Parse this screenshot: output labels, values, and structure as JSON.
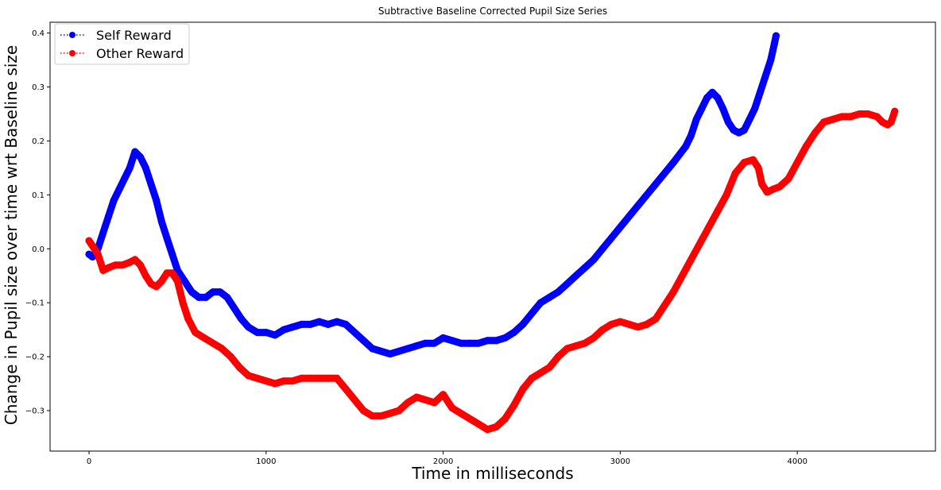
{
  "chart_data": {
    "type": "line",
    "title": "Subtractive Baseline Corrected Pupil Size Series",
    "xlabel": "Time in milliseconds",
    "ylabel": "Change in Pupil size over time wrt Baseline size",
    "xlim": [
      -220,
      4780
    ],
    "ylim": [
      -0.375,
      0.42
    ],
    "xticks": [
      0,
      1000,
      2000,
      3000,
      4000
    ],
    "yticks": [
      -0.3,
      -0.2,
      -0.1,
      0.0,
      0.1,
      0.2,
      0.3,
      0.4
    ],
    "xtick_labels": [
      "0",
      "1000",
      "2000",
      "3000",
      "4000"
    ],
    "ytick_labels": [
      "−0.3",
      "−0.2",
      "−0.1",
      "0.0",
      "0.1",
      "0.2",
      "0.3",
      "0.4"
    ],
    "grid": false,
    "legend_position": "top-left",
    "series": [
      {
        "name": "Self Reward",
        "color": "#0000ff",
        "points": [
          [
            0,
            -0.01
          ],
          [
            20,
            -0.015
          ],
          [
            50,
            0.0
          ],
          [
            80,
            0.03
          ],
          [
            110,
            0.06
          ],
          [
            140,
            0.09
          ],
          [
            170,
            0.11
          ],
          [
            200,
            0.13
          ],
          [
            230,
            0.15
          ],
          [
            260,
            0.18
          ],
          [
            290,
            0.17
          ],
          [
            320,
            0.15
          ],
          [
            350,
            0.12
          ],
          [
            380,
            0.09
          ],
          [
            410,
            0.05
          ],
          [
            440,
            0.02
          ],
          [
            470,
            -0.01
          ],
          [
            500,
            -0.04
          ],
          [
            540,
            -0.06
          ],
          [
            580,
            -0.08
          ],
          [
            620,
            -0.09
          ],
          [
            660,
            -0.09
          ],
          [
            700,
            -0.08
          ],
          [
            740,
            -0.08
          ],
          [
            780,
            -0.09
          ],
          [
            820,
            -0.11
          ],
          [
            860,
            -0.13
          ],
          [
            900,
            -0.145
          ],
          [
            950,
            -0.155
          ],
          [
            1000,
            -0.155
          ],
          [
            1050,
            -0.16
          ],
          [
            1100,
            -0.15
          ],
          [
            1150,
            -0.145
          ],
          [
            1200,
            -0.14
          ],
          [
            1250,
            -0.14
          ],
          [
            1300,
            -0.135
          ],
          [
            1350,
            -0.14
          ],
          [
            1400,
            -0.135
          ],
          [
            1450,
            -0.14
          ],
          [
            1500,
            -0.155
          ],
          [
            1550,
            -0.17
          ],
          [
            1600,
            -0.185
          ],
          [
            1650,
            -0.19
          ],
          [
            1700,
            -0.195
          ],
          [
            1750,
            -0.19
          ],
          [
            1800,
            -0.185
          ],
          [
            1850,
            -0.18
          ],
          [
            1900,
            -0.175
          ],
          [
            1950,
            -0.175
          ],
          [
            2000,
            -0.165
          ],
          [
            2050,
            -0.17
          ],
          [
            2100,
            -0.175
          ],
          [
            2150,
            -0.175
          ],
          [
            2200,
            -0.175
          ],
          [
            2250,
            -0.17
          ],
          [
            2300,
            -0.17
          ],
          [
            2350,
            -0.165
          ],
          [
            2400,
            -0.155
          ],
          [
            2450,
            -0.14
          ],
          [
            2500,
            -0.12
          ],
          [
            2550,
            -0.1
          ],
          [
            2600,
            -0.09
          ],
          [
            2650,
            -0.08
          ],
          [
            2700,
            -0.065
          ],
          [
            2750,
            -0.05
          ],
          [
            2800,
            -0.035
          ],
          [
            2850,
            -0.02
          ],
          [
            2900,
            0.0
          ],
          [
            2950,
            0.02
          ],
          [
            3000,
            0.04
          ],
          [
            3100,
            0.08
          ],
          [
            3200,
            0.12
          ],
          [
            3300,
            0.16
          ],
          [
            3370,
            0.19
          ],
          [
            3400,
            0.21
          ],
          [
            3430,
            0.24
          ],
          [
            3460,
            0.26
          ],
          [
            3490,
            0.28
          ],
          [
            3520,
            0.29
          ],
          [
            3550,
            0.28
          ],
          [
            3580,
            0.26
          ],
          [
            3610,
            0.235
          ],
          [
            3640,
            0.22
          ],
          [
            3670,
            0.215
          ],
          [
            3700,
            0.22
          ],
          [
            3730,
            0.24
          ],
          [
            3760,
            0.26
          ],
          [
            3790,
            0.29
          ],
          [
            3820,
            0.32
          ],
          [
            3850,
            0.35
          ],
          [
            3870,
            0.38
          ],
          [
            3880,
            0.395
          ]
        ]
      },
      {
        "name": "Other Reward",
        "color": "#ff0000",
        "points": [
          [
            0,
            0.015
          ],
          [
            20,
            0.005
          ],
          [
            50,
            -0.01
          ],
          [
            80,
            -0.04
          ],
          [
            110,
            -0.035
          ],
          [
            150,
            -0.03
          ],
          [
            190,
            -0.03
          ],
          [
            230,
            -0.025
          ],
          [
            260,
            -0.02
          ],
          [
            290,
            -0.03
          ],
          [
            320,
            -0.05
          ],
          [
            350,
            -0.065
          ],
          [
            380,
            -0.07
          ],
          [
            410,
            -0.06
          ],
          [
            440,
            -0.045
          ],
          [
            470,
            -0.045
          ],
          [
            500,
            -0.06
          ],
          [
            530,
            -0.1
          ],
          [
            560,
            -0.13
          ],
          [
            600,
            -0.155
          ],
          [
            650,
            -0.165
          ],
          [
            700,
            -0.175
          ],
          [
            750,
            -0.185
          ],
          [
            800,
            -0.2
          ],
          [
            850,
            -0.22
          ],
          [
            900,
            -0.235
          ],
          [
            950,
            -0.24
          ],
          [
            1000,
            -0.245
          ],
          [
            1050,
            -0.25
          ],
          [
            1100,
            -0.245
          ],
          [
            1150,
            -0.245
          ],
          [
            1200,
            -0.24
          ],
          [
            1250,
            -0.24
          ],
          [
            1300,
            -0.24
          ],
          [
            1350,
            -0.24
          ],
          [
            1400,
            -0.24
          ],
          [
            1450,
            -0.26
          ],
          [
            1500,
            -0.28
          ],
          [
            1550,
            -0.3
          ],
          [
            1600,
            -0.31
          ],
          [
            1650,
            -0.31
          ],
          [
            1700,
            -0.305
          ],
          [
            1750,
            -0.3
          ],
          [
            1800,
            -0.285
          ],
          [
            1850,
            -0.275
          ],
          [
            1900,
            -0.28
          ],
          [
            1950,
            -0.285
          ],
          [
            2000,
            -0.27
          ],
          [
            2050,
            -0.295
          ],
          [
            2100,
            -0.305
          ],
          [
            2150,
            -0.315
          ],
          [
            2200,
            -0.325
          ],
          [
            2250,
            -0.335
          ],
          [
            2300,
            -0.33
          ],
          [
            2350,
            -0.315
          ],
          [
            2400,
            -0.29
          ],
          [
            2450,
            -0.26
          ],
          [
            2500,
            -0.24
          ],
          [
            2550,
            -0.23
          ],
          [
            2600,
            -0.22
          ],
          [
            2650,
            -0.2
          ],
          [
            2700,
            -0.185
          ],
          [
            2750,
            -0.18
          ],
          [
            2800,
            -0.175
          ],
          [
            2850,
            -0.165
          ],
          [
            2900,
            -0.15
          ],
          [
            2950,
            -0.14
          ],
          [
            3000,
            -0.135
          ],
          [
            3050,
            -0.14
          ],
          [
            3100,
            -0.145
          ],
          [
            3150,
            -0.14
          ],
          [
            3200,
            -0.13
          ],
          [
            3300,
            -0.08
          ],
          [
            3400,
            -0.02
          ],
          [
            3500,
            0.04
          ],
          [
            3550,
            0.07
          ],
          [
            3600,
            0.1
          ],
          [
            3650,
            0.14
          ],
          [
            3700,
            0.16
          ],
          [
            3750,
            0.165
          ],
          [
            3780,
            0.15
          ],
          [
            3800,
            0.12
          ],
          [
            3830,
            0.105
          ],
          [
            3860,
            0.11
          ],
          [
            3900,
            0.115
          ],
          [
            3950,
            0.13
          ],
          [
            4000,
            0.16
          ],
          [
            4050,
            0.19
          ],
          [
            4100,
            0.215
          ],
          [
            4150,
            0.235
          ],
          [
            4200,
            0.24
          ],
          [
            4250,
            0.245
          ],
          [
            4300,
            0.245
          ],
          [
            4350,
            0.25
          ],
          [
            4400,
            0.25
          ],
          [
            4450,
            0.245
          ],
          [
            4480,
            0.235
          ],
          [
            4510,
            0.23
          ],
          [
            4530,
            0.235
          ],
          [
            4550,
            0.255
          ]
        ]
      }
    ]
  }
}
